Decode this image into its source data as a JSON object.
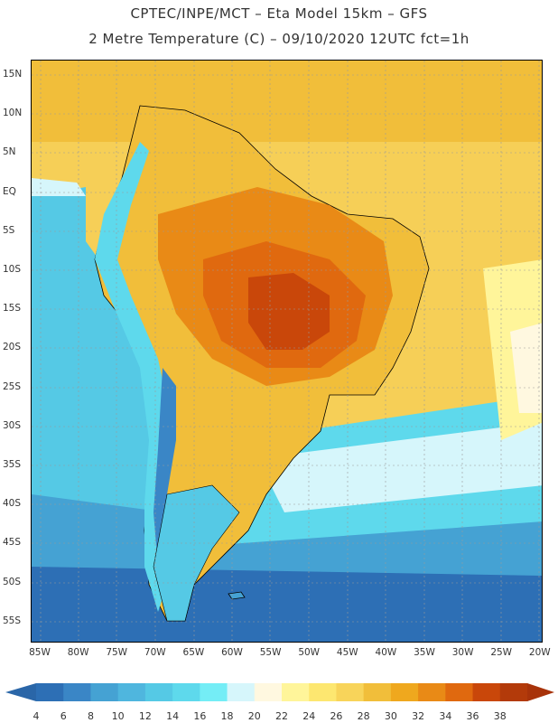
{
  "header": {
    "title_line1": "CPTEC/INPE/MCT –  Eta Model 15km – GFS",
    "title_line2": "2 Metre Temperature (C) – 09/10/2020 12UTC fct=1h"
  },
  "map": {
    "lat_labels": [
      "15N",
      "10N",
      "5N",
      "EQ",
      "5S",
      "10S",
      "15S",
      "20S",
      "25S",
      "30S",
      "35S",
      "40S",
      "45S",
      "50S",
      "55S"
    ],
    "lon_labels": [
      "85W",
      "80W",
      "75W",
      "70W",
      "65W",
      "60W",
      "55W",
      "50W",
      "45W",
      "40W",
      "35W",
      "30W",
      "25W",
      "20W"
    ],
    "grid": true
  },
  "colorbar": {
    "levels": [
      "4",
      "6",
      "8",
      "10",
      "12",
      "14",
      "16",
      "18",
      "20",
      "22",
      "24",
      "26",
      "28",
      "30",
      "32",
      "34",
      "36",
      "38"
    ],
    "colors": [
      "#2d6fb5",
      "#3a86c6",
      "#45a2d3",
      "#4fb6de",
      "#55c9e5",
      "#5ed9ec",
      "#74edf6",
      "#d6f6fb",
      "#fff8e0",
      "#fff59a",
      "#fde770",
      "#f8d45a",
      "#f1be3a",
      "#efa81e",
      "#e98a16",
      "#e0690f",
      "#c9470a",
      "#b33a0a"
    ],
    "under_color": "#2a66a8",
    "over_color": "#a8330a"
  },
  "colors": {
    "ocean_north": "#f6cf57",
    "land_hot": "#e98a16",
    "land_very_hot": "#d45f0c",
    "pacific": "#55c9e5",
    "deep_south": "#2d6fb5",
    "andes": "#3a86c6"
  }
}
